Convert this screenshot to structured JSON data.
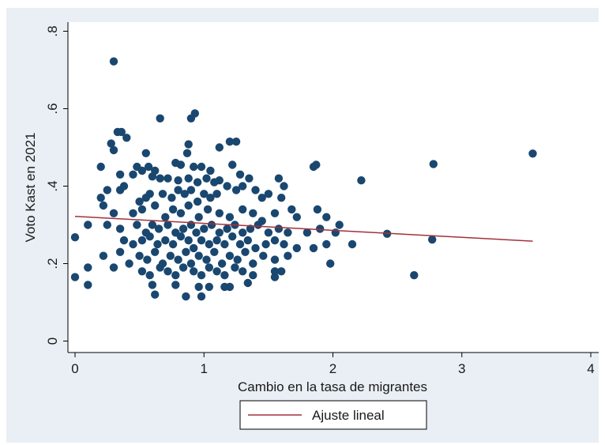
{
  "chart_data": {
    "type": "scatter",
    "title": "",
    "xlabel": "Cambio en la tasa de migrantes",
    "ylabel": "Voto Kast en 2021",
    "xlim": [
      0,
      4
    ],
    "ylim": [
      0,
      0.8
    ],
    "x_ticks": [
      0,
      1,
      2,
      3,
      4
    ],
    "x_tick_labels": [
      "0",
      "1",
      "2",
      "3",
      "4"
    ],
    "y_ticks": [
      0,
      0.2,
      0.4,
      0.6,
      0.8
    ],
    "y_tick_labels": [
      "0",
      ".2",
      ".4",
      ".6",
      ".8"
    ],
    "grid": false,
    "legend_position": "bottom",
    "colors": {
      "outer_background": "#e9eff4",
      "plot_background": "#ffffff",
      "marker": "#1a476f",
      "fit_line": "#a3313a",
      "axis": "#000000"
    },
    "fit_line": {
      "name": "Ajuste lineal",
      "x": [
        0,
        3.55
      ],
      "y": [
        0.322,
        0.258
      ]
    },
    "series": [
      {
        "type": "scatter",
        "points": [
          [
            0.3,
            0.722
          ],
          [
            0.33,
            0.54
          ],
          [
            0.36,
            0.54
          ],
          [
            0.4,
            0.525
          ],
          [
            0.66,
            0.575
          ],
          [
            0.9,
            0.575
          ],
          [
            0.93,
            0.588
          ],
          [
            0.28,
            0.51
          ],
          [
            0.3,
            0.493
          ],
          [
            0.88,
            0.508
          ],
          [
            1.12,
            0.5
          ],
          [
            1.2,
            0.515
          ],
          [
            1.25,
            0.515
          ],
          [
            0.55,
            0.485
          ],
          [
            0.87,
            0.485
          ],
          [
            3.55,
            0.484
          ],
          [
            0.48,
            0.45
          ],
          [
            0.52,
            0.44
          ],
          [
            0.57,
            0.45
          ],
          [
            0.62,
            0.44
          ],
          [
            0.2,
            0.45
          ],
          [
            0.35,
            0.43
          ],
          [
            0.78,
            0.46
          ],
          [
            0.82,
            0.455
          ],
          [
            0.92,
            0.45
          ],
          [
            0.98,
            0.45
          ],
          [
            1.05,
            0.44
          ],
          [
            1.22,
            0.455
          ],
          [
            1.28,
            0.43
          ],
          [
            1.85,
            0.45
          ],
          [
            1.87,
            0.455
          ],
          [
            2.78,
            0.457
          ],
          [
            0.45,
            0.43
          ],
          [
            0.6,
            0.425
          ],
          [
            0.66,
            0.42
          ],
          [
            0.72,
            0.42
          ],
          [
            0.8,
            0.415
          ],
          [
            0.88,
            0.42
          ],
          [
            0.95,
            0.41
          ],
          [
            1.02,
            0.42
          ],
          [
            1.08,
            0.41
          ],
          [
            1.12,
            0.415
          ],
          [
            1.3,
            0.4
          ],
          [
            1.35,
            0.42
          ],
          [
            1.58,
            0.42
          ],
          [
            1.62,
            0.4
          ],
          [
            2.22,
            0.415
          ],
          [
            0.2,
            0.37
          ],
          [
            0.25,
            0.39
          ],
          [
            0.35,
            0.39
          ],
          [
            0.38,
            0.4
          ],
          [
            0.5,
            0.36
          ],
          [
            0.55,
            0.37
          ],
          [
            0.58,
            0.38
          ],
          [
            0.68,
            0.38
          ],
          [
            0.75,
            0.37
          ],
          [
            0.8,
            0.39
          ],
          [
            0.85,
            0.38
          ],
          [
            0.9,
            0.39
          ],
          [
            0.95,
            0.36
          ],
          [
            1.0,
            0.38
          ],
          [
            1.05,
            0.37
          ],
          [
            1.1,
            0.38
          ],
          [
            1.18,
            0.4
          ],
          [
            1.25,
            0.39
          ],
          [
            1.4,
            0.39
          ],
          [
            1.45,
            0.37
          ],
          [
            1.5,
            0.38
          ],
          [
            1.6,
            0.37
          ],
          [
            0.22,
            0.35
          ],
          [
            0.3,
            0.33
          ],
          [
            0.45,
            0.33
          ],
          [
            0.52,
            0.34
          ],
          [
            0.62,
            0.35
          ],
          [
            0.7,
            0.32
          ],
          [
            0.76,
            0.34
          ],
          [
            0.82,
            0.33
          ],
          [
            0.88,
            0.35
          ],
          [
            0.96,
            0.32
          ],
          [
            1.03,
            0.34
          ],
          [
            1.12,
            0.33
          ],
          [
            1.2,
            0.32
          ],
          [
            1.3,
            0.34
          ],
          [
            1.38,
            0.33
          ],
          [
            1.45,
            0.31
          ],
          [
            1.55,
            0.33
          ],
          [
            1.68,
            0.34
          ],
          [
            1.72,
            0.32
          ],
          [
            1.88,
            0.34
          ],
          [
            1.95,
            0.32
          ],
          [
            2.05,
            0.3
          ],
          [
            0.1,
            0.3
          ],
          [
            0.25,
            0.3
          ],
          [
            0.35,
            0.29
          ],
          [
            0.48,
            0.3
          ],
          [
            0.55,
            0.28
          ],
          [
            0.6,
            0.3
          ],
          [
            0.65,
            0.29
          ],
          [
            0.72,
            0.3
          ],
          [
            0.78,
            0.28
          ],
          [
            0.84,
            0.29
          ],
          [
            0.9,
            0.3
          ],
          [
            0.94,
            0.28
          ],
          [
            1.0,
            0.29
          ],
          [
            1.06,
            0.3
          ],
          [
            1.12,
            0.28
          ],
          [
            1.18,
            0.29
          ],
          [
            1.24,
            0.3
          ],
          [
            1.3,
            0.28
          ],
          [
            1.36,
            0.29
          ],
          [
            1.42,
            0.3
          ],
          [
            1.5,
            0.28
          ],
          [
            1.58,
            0.29
          ],
          [
            1.65,
            0.28
          ],
          [
            1.8,
            0.28
          ],
          [
            1.9,
            0.29
          ],
          [
            2.02,
            0.28
          ],
          [
            2.42,
            0.277
          ],
          [
            0.0,
            0.268
          ],
          [
            0.38,
            0.26
          ],
          [
            0.45,
            0.25
          ],
          [
            0.52,
            0.26
          ],
          [
            0.58,
            0.27
          ],
          [
            0.64,
            0.25
          ],
          [
            0.7,
            0.26
          ],
          [
            0.76,
            0.25
          ],
          [
            0.82,
            0.27
          ],
          [
            0.88,
            0.26
          ],
          [
            0.92,
            0.24
          ],
          [
            0.98,
            0.26
          ],
          [
            1.04,
            0.25
          ],
          [
            1.1,
            0.26
          ],
          [
            1.16,
            0.25
          ],
          [
            1.22,
            0.27
          ],
          [
            1.28,
            0.25
          ],
          [
            1.34,
            0.26
          ],
          [
            1.4,
            0.24
          ],
          [
            1.48,
            0.25
          ],
          [
            1.55,
            0.26
          ],
          [
            1.62,
            0.25
          ],
          [
            1.72,
            0.24
          ],
          [
            1.85,
            0.24
          ],
          [
            1.95,
            0.25
          ],
          [
            2.15,
            0.25
          ],
          [
            2.77,
            0.262
          ],
          [
            0.22,
            0.22
          ],
          [
            0.35,
            0.23
          ],
          [
            0.42,
            0.2
          ],
          [
            0.5,
            0.22
          ],
          [
            0.56,
            0.21
          ],
          [
            0.62,
            0.23
          ],
          [
            0.68,
            0.2
          ],
          [
            0.74,
            0.22
          ],
          [
            0.8,
            0.21
          ],
          [
            0.86,
            0.23
          ],
          [
            0.9,
            0.2
          ],
          [
            0.96,
            0.22
          ],
          [
            1.02,
            0.21
          ],
          [
            1.08,
            0.23
          ],
          [
            1.14,
            0.2
          ],
          [
            1.2,
            0.22
          ],
          [
            1.26,
            0.21
          ],
          [
            1.32,
            0.23
          ],
          [
            1.38,
            0.2
          ],
          [
            1.46,
            0.22
          ],
          [
            1.55,
            0.21
          ],
          [
            1.65,
            0.22
          ],
          [
            1.98,
            0.2
          ],
          [
            0.1,
            0.19
          ],
          [
            0.3,
            0.19
          ],
          [
            0.52,
            0.18
          ],
          [
            0.58,
            0.17
          ],
          [
            0.66,
            0.19
          ],
          [
            0.72,
            0.18
          ],
          [
            0.78,
            0.17
          ],
          [
            0.84,
            0.19
          ],
          [
            0.92,
            0.18
          ],
          [
            0.98,
            0.17
          ],
          [
            1.04,
            0.19
          ],
          [
            1.1,
            0.18
          ],
          [
            1.16,
            0.17
          ],
          [
            1.24,
            0.19
          ],
          [
            1.3,
            0.18
          ],
          [
            1.38,
            0.17
          ],
          [
            1.55,
            0.18
          ],
          [
            1.6,
            0.18
          ],
          [
            0.0,
            0.165
          ],
          [
            0.1,
            0.145
          ],
          [
            0.6,
            0.145
          ],
          [
            0.78,
            0.145
          ],
          [
            0.96,
            0.14
          ],
          [
            1.04,
            0.14
          ],
          [
            1.16,
            0.14
          ],
          [
            1.2,
            0.14
          ],
          [
            1.34,
            0.15
          ],
          [
            1.55,
            0.165
          ],
          [
            2.63,
            0.17
          ],
          [
            0.62,
            0.12
          ],
          [
            0.86,
            0.115
          ],
          [
            0.98,
            0.115
          ]
        ]
      }
    ]
  }
}
